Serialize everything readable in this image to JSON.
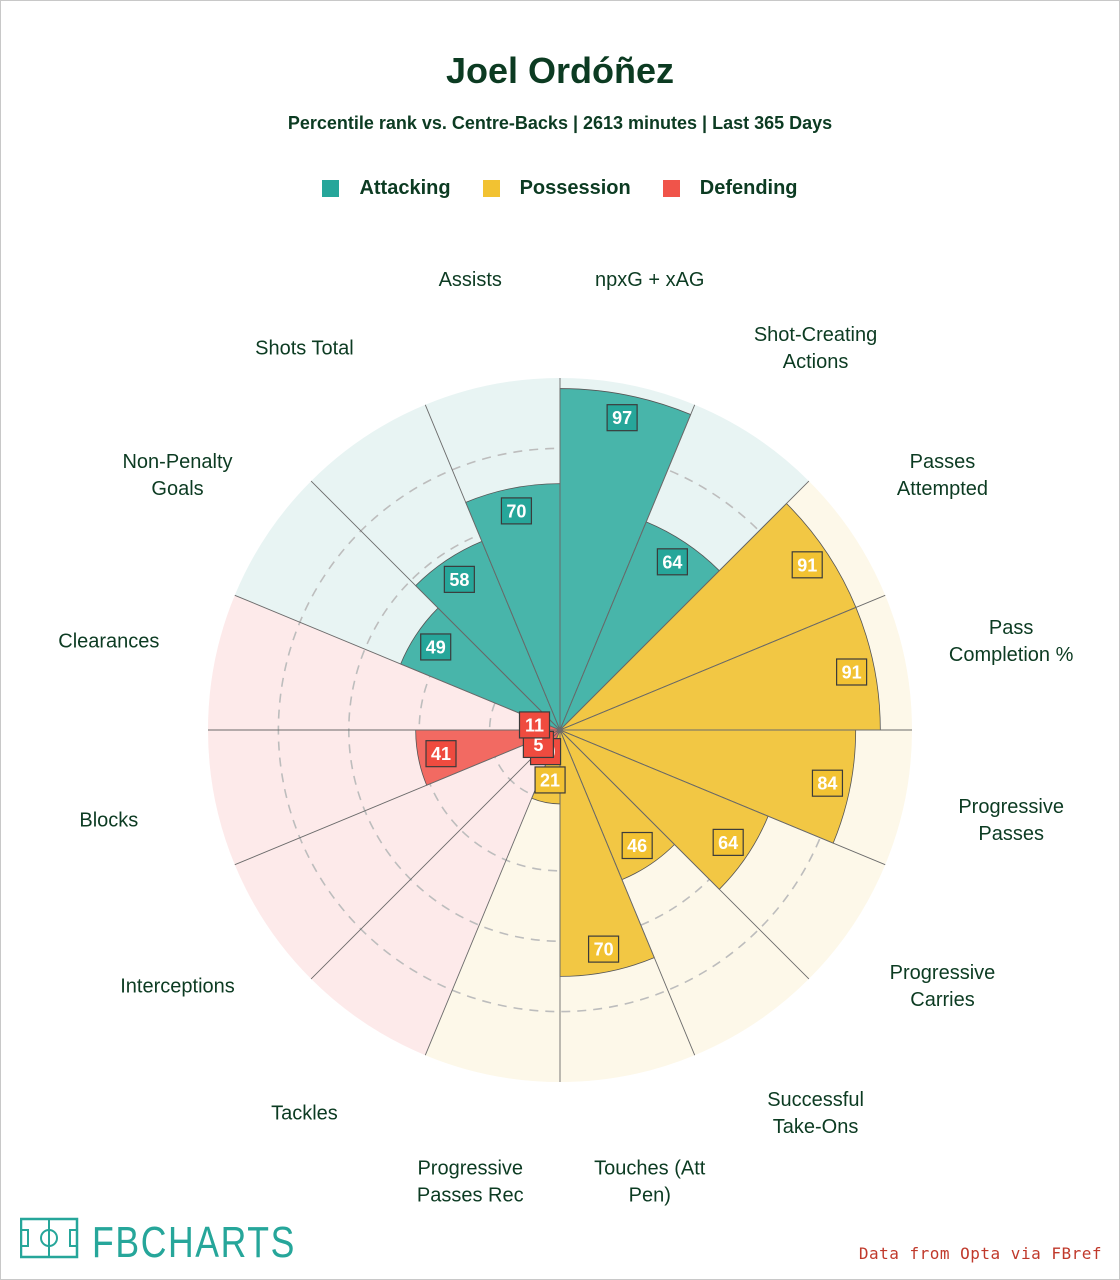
{
  "title": "Joel Ordóñez",
  "subtitle": "Percentile rank vs. Centre-Backs | 2613 minutes | Last 365 Days",
  "legend": [
    {
      "label": "Attacking",
      "color": "#26a69a"
    },
    {
      "label": "Possession",
      "color": "#f2c232"
    },
    {
      "label": "Defending",
      "color": "#f0544a"
    }
  ],
  "colors": {
    "Attacking": {
      "fill": "#48b5aa",
      "bg": "#e8f4f3",
      "box": "#26a69a"
    },
    "Possession": {
      "fill": "#f2c744",
      "bg": "#fdf8e9",
      "box": "#f2c232"
    },
    "Defending": {
      "fill": "#f26a62",
      "bg": "#fdeaea",
      "box": "#ef4b3f"
    },
    "title": "#0c3b22",
    "source": "#c0392b",
    "logo": "#26a69a"
  },
  "chart_data": {
    "type": "polar-bar",
    "title": "Joel Ordóñez",
    "subtitle": "Percentile rank vs. Centre-Backs | 2613 minutes | Last 365 Days",
    "rlim": [
      0,
      100
    ],
    "gridlines": [
      20,
      40,
      60,
      80
    ],
    "categories": [
      {
        "label": [
          "npxG + xAG"
        ],
        "group": "Attacking",
        "value": 97
      },
      {
        "label": [
          "Shot-Creating",
          "Actions"
        ],
        "group": "Attacking",
        "value": 64
      },
      {
        "label": [
          "Passes",
          "Attempted"
        ],
        "group": "Possession",
        "value": 91
      },
      {
        "label": [
          "Pass",
          "Completion %"
        ],
        "group": "Possession",
        "value": 91
      },
      {
        "label": [
          "Progressive",
          "Passes"
        ],
        "group": "Possession",
        "value": 84
      },
      {
        "label": [
          "Progressive",
          "Carries"
        ],
        "group": "Possession",
        "value": 64
      },
      {
        "label": [
          "Successful",
          "Take-Ons"
        ],
        "group": "Possession",
        "value": 46
      },
      {
        "label": [
          "Touches (Att",
          "Pen)"
        ],
        "group": "Possession",
        "value": 70
      },
      {
        "label": [
          "Progressive",
          "Passes Rec"
        ],
        "group": "Possession",
        "value": 21
      },
      {
        "label": [
          "Tackles"
        ],
        "group": "Defending",
        "value": 10
      },
      {
        "label": [
          "Interceptions"
        ],
        "group": "Defending",
        "value": 5
      },
      {
        "label": [
          "Blocks"
        ],
        "group": "Defending",
        "value": 41
      },
      {
        "label": [
          "Clearances"
        ],
        "group": "Defending",
        "value": 11
      },
      {
        "label": [
          "Non-Penalty",
          "Goals"
        ],
        "group": "Attacking",
        "value": 49
      },
      {
        "label": [
          "Shots Total"
        ],
        "group": "Attacking",
        "value": 58
      },
      {
        "label": [
          "Assists"
        ],
        "group": "Attacking",
        "value": 70
      }
    ]
  },
  "logo": {
    "text": "FBCHARTS"
  },
  "source": "Data from Opta via FBref"
}
